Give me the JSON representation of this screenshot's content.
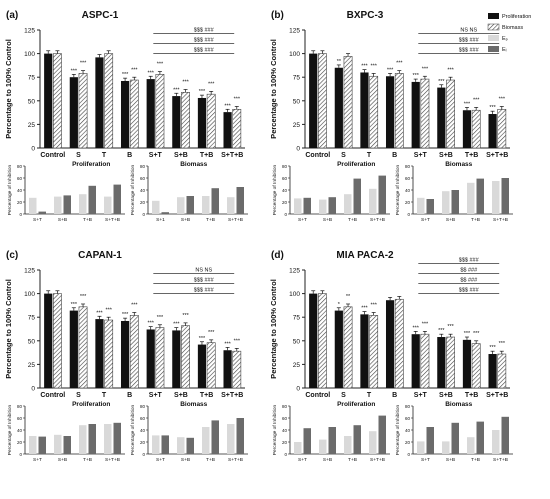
{
  "colors": {
    "proliferation": "#111111",
    "biomass_stroke": "#444444",
    "ep": "#d9d9d9",
    "ei": "#6b6b6b",
    "axis": "#222222",
    "sig_line": "#333333"
  },
  "legend": {
    "items": [
      {
        "label": "Proliferation",
        "key": "prolif"
      },
      {
        "label": "Biomass",
        "key": "biomass"
      },
      {
        "label": "Eₚ",
        "key": "ep"
      },
      {
        "label": "Eᵢ",
        "key": "ei"
      }
    ]
  },
  "chart_data": [
    {
      "panel": "(a)",
      "title": "ASPC-1",
      "type": "bar",
      "ylabel": "Percentage to 100% Control",
      "ylim": [
        0,
        125
      ],
      "yticks": [
        "0",
        "25",
        "50",
        "75",
        "100",
        "125"
      ],
      "categories": [
        "Control",
        "S",
        "T",
        "B",
        "S+T",
        "S+B",
        "T+B",
        "S+T+B"
      ],
      "group_labels": [
        "Proliferation",
        "Biomass"
      ],
      "series": [
        {
          "name": "Proliferation",
          "values": [
            100,
            75,
            96,
            71,
            73,
            55,
            53,
            38
          ]
        },
        {
          "name": "Biomass",
          "values": [
            100,
            79,
            100,
            72,
            78,
            59,
            57,
            41
          ]
        }
      ],
      "stars": [
        [
          "",
          ""
        ],
        [
          "***",
          "***"
        ],
        [
          "",
          ""
        ],
        [
          "***",
          "***"
        ],
        [
          "***",
          "***"
        ],
        [
          "***",
          "***"
        ],
        [
          "***",
          "***"
        ],
        [
          "***",
          "***"
        ]
      ],
      "sig": [
        {
          "label": "$$$  ###",
          "from": 4,
          "to": 7,
          "level": 3
        },
        {
          "label": "$$$  ###",
          "from": 4,
          "to": 7,
          "level": 2
        },
        {
          "label": "$$$  ###",
          "from": 4,
          "to": 7,
          "level": 1
        }
      ],
      "inhibition": [
        {
          "ylabel": "Percentage of Inhibition",
          "ylim": [
            0,
            80
          ],
          "yticks": [
            "0",
            "20",
            "40",
            "60",
            "80"
          ],
          "categories": [
            "S+T",
            "S+B",
            "T+B",
            "S+T+B"
          ],
          "ep": [
            27,
            29,
            33,
            29
          ],
          "ei": [
            4,
            31,
            47,
            49
          ]
        },
        {
          "ylabel": "Percentage of Inhibition",
          "ylim": [
            0,
            80
          ],
          "yticks": [
            "0",
            "20",
            "40",
            "60",
            "80"
          ],
          "categories": [
            "S+1",
            "S+B",
            "T+B",
            "S+T+B"
          ],
          "ep": [
            22,
            28,
            30,
            28
          ],
          "ei": [
            3,
            30,
            43,
            45
          ]
        }
      ]
    },
    {
      "panel": "(b)",
      "title": "BXPC-3",
      "type": "bar",
      "ylabel": "Percentage to 100% Control",
      "ylim": [
        0,
        125
      ],
      "yticks": [
        "0",
        "25",
        "50",
        "75",
        "100",
        "125"
      ],
      "categories": [
        "Control",
        "S",
        "T",
        "B",
        "S+T",
        "S+B",
        "T+B",
        "S+T+B"
      ],
      "group_labels": [
        "Proliferation",
        "Biomass"
      ],
      "series": [
        {
          "name": "Proliferation",
          "values": [
            100,
            85,
            80,
            76,
            70,
            64,
            40,
            36
          ]
        },
        {
          "name": "Biomass",
          "values": [
            100,
            97,
            76,
            79,
            73,
            72,
            40,
            41
          ]
        }
      ],
      "stars": [
        [
          "",
          ""
        ],
        [
          "**",
          ""
        ],
        [
          "***",
          "***"
        ],
        [
          "***",
          "***"
        ],
        [
          "***",
          "***"
        ],
        [
          "***",
          "***"
        ],
        [
          "***",
          "***"
        ],
        [
          "***",
          "***"
        ]
      ],
      "sig": [
        {
          "label": "NS  NS",
          "from": 4,
          "to": 7,
          "level": 3
        },
        {
          "label": "$$$  ###",
          "from": 4,
          "to": 7,
          "level": 2
        },
        {
          "label": "$$$  ###",
          "from": 4,
          "to": 7,
          "level": 1
        }
      ],
      "inhibition": [
        {
          "ylabel": "Percentage of Inhibition",
          "ylim": [
            0,
            80
          ],
          "yticks": [
            "0",
            "20",
            "40",
            "60",
            "80"
          ],
          "categories": [
            "S+T",
            "S+B",
            "T+B",
            "S+T+B"
          ],
          "ep": [
            26,
            24,
            33,
            42
          ],
          "ei": [
            27,
            28,
            59,
            64
          ]
        },
        {
          "ylabel": "Percentage of Inhibition",
          "ylim": [
            0,
            80
          ],
          "yticks": [
            "0",
            "20",
            "40",
            "60",
            "80"
          ],
          "categories": [
            "S+T",
            "S+B",
            "T+B",
            "S+T+B"
          ],
          "ep": [
            27,
            38,
            52,
            55
          ],
          "ei": [
            25,
            40,
            59,
            60
          ]
        }
      ]
    },
    {
      "panel": "(c)",
      "title": "CAPAN-1",
      "type": "bar",
      "ylabel": "Percentage to 100% Control",
      "ylim": [
        0,
        125
      ],
      "yticks": [
        "0",
        "25",
        "50",
        "75",
        "100",
        "125"
      ],
      "categories": [
        "Control",
        "S",
        "T",
        "B",
        "S+T",
        "S+B",
        "T+B",
        "S+T+B"
      ],
      "group_labels": [
        "Proliferation",
        "Biomass"
      ],
      "series": [
        {
          "name": "Proliferation",
          "values": [
            100,
            82,
            73,
            71,
            62,
            61,
            46,
            40
          ]
        },
        {
          "name": "Biomass",
          "values": [
            100,
            86,
            72,
            77,
            64,
            66,
            48,
            39
          ]
        }
      ],
      "stars": [
        [
          "",
          ""
        ],
        [
          "***",
          "***"
        ],
        [
          "***",
          "***"
        ],
        [
          "***",
          "***"
        ],
        [
          "***",
          "***"
        ],
        [
          "***",
          "***"
        ],
        [
          "***",
          "***"
        ],
        [
          "***",
          "***"
        ]
      ],
      "sig": [
        {
          "label": "NS  NS",
          "from": 4,
          "to": 7,
          "level": 3
        },
        {
          "label": "$$$  ###",
          "from": 4,
          "to": 7,
          "level": 2
        },
        {
          "label": "$$$  ###",
          "from": 4,
          "to": 7,
          "level": 1
        }
      ],
      "inhibition": [
        {
          "ylabel": "Percentage of Inhibition",
          "ylim": [
            0,
            80
          ],
          "yticks": [
            "0",
            "20",
            "40",
            "60",
            "80"
          ],
          "categories": [
            "S+T",
            "S+B",
            "T+B",
            "S+T+B"
          ],
          "ep": [
            30,
            32,
            48,
            50
          ],
          "ei": [
            29,
            30,
            50,
            52
          ]
        },
        {
          "ylabel": "Percentage of Inhibition",
          "ylim": [
            0,
            80
          ],
          "yticks": [
            "0",
            "20",
            "40",
            "60",
            "80"
          ],
          "categories": [
            "S+T",
            "S+B",
            "T+B",
            "S+T+B"
          ],
          "ep": [
            31,
            28,
            45,
            50
          ],
          "ei": [
            31,
            27,
            56,
            60
          ]
        }
      ]
    },
    {
      "panel": "(d)",
      "title": "MIA PACA-2",
      "type": "bar",
      "ylabel": "Percentage to 100% Control",
      "ylim": [
        0,
        125
      ],
      "yticks": [
        "0",
        "25",
        "50",
        "75",
        "100",
        "125"
      ],
      "categories": [
        "Control",
        "S",
        "T",
        "B",
        "S+T",
        "S+B",
        "T+B",
        "S+T+B"
      ],
      "group_labels": [
        "Proliferation",
        "Biomass"
      ],
      "series": [
        {
          "name": "Proliferation",
          "values": [
            100,
            82,
            78,
            93,
            57,
            54,
            51,
            36
          ]
        },
        {
          "name": "Biomass",
          "values": [
            100,
            86,
            77,
            94,
            57,
            54,
            47,
            36
          ]
        }
      ],
      "stars": [
        [
          "",
          ""
        ],
        [
          "*",
          "**"
        ],
        [
          "***",
          "***"
        ],
        [
          "",
          ""
        ],
        [
          "***",
          "***"
        ],
        [
          "***",
          "***"
        ],
        [
          "***",
          "***"
        ],
        [
          "***",
          "***"
        ]
      ],
      "sig": [
        {
          "label": "$$$  ###",
          "from": 4,
          "to": 7,
          "level": 4
        },
        {
          "label": "$$  ###",
          "from": 4,
          "to": 7,
          "level": 3
        },
        {
          "label": "$$  ###",
          "from": 4,
          "to": 7,
          "level": 2
        },
        {
          "label": "$$$  ###",
          "from": 4,
          "to": 7,
          "level": 1
        }
      ],
      "inhibition": [
        {
          "ylabel": "Percentage of Inhibition",
          "ylim": [
            0,
            80
          ],
          "yticks": [
            "0",
            "20",
            "40",
            "60",
            "80"
          ],
          "categories": [
            "S+T",
            "S+B",
            "T+B",
            "S+T+B"
          ],
          "ep": [
            20,
            24,
            30,
            38
          ],
          "ei": [
            43,
            45,
            48,
            64
          ]
        },
        {
          "ylabel": "Percentage of Inhibition",
          "ylim": [
            0,
            80
          ],
          "yticks": [
            "0",
            "20",
            "40",
            "60",
            "80"
          ],
          "categories": [
            "S+T",
            "S+B",
            "T+B",
            "S+T+B"
          ],
          "ep": [
            21,
            21,
            28,
            40
          ],
          "ei": [
            45,
            52,
            54,
            62
          ]
        }
      ]
    }
  ]
}
